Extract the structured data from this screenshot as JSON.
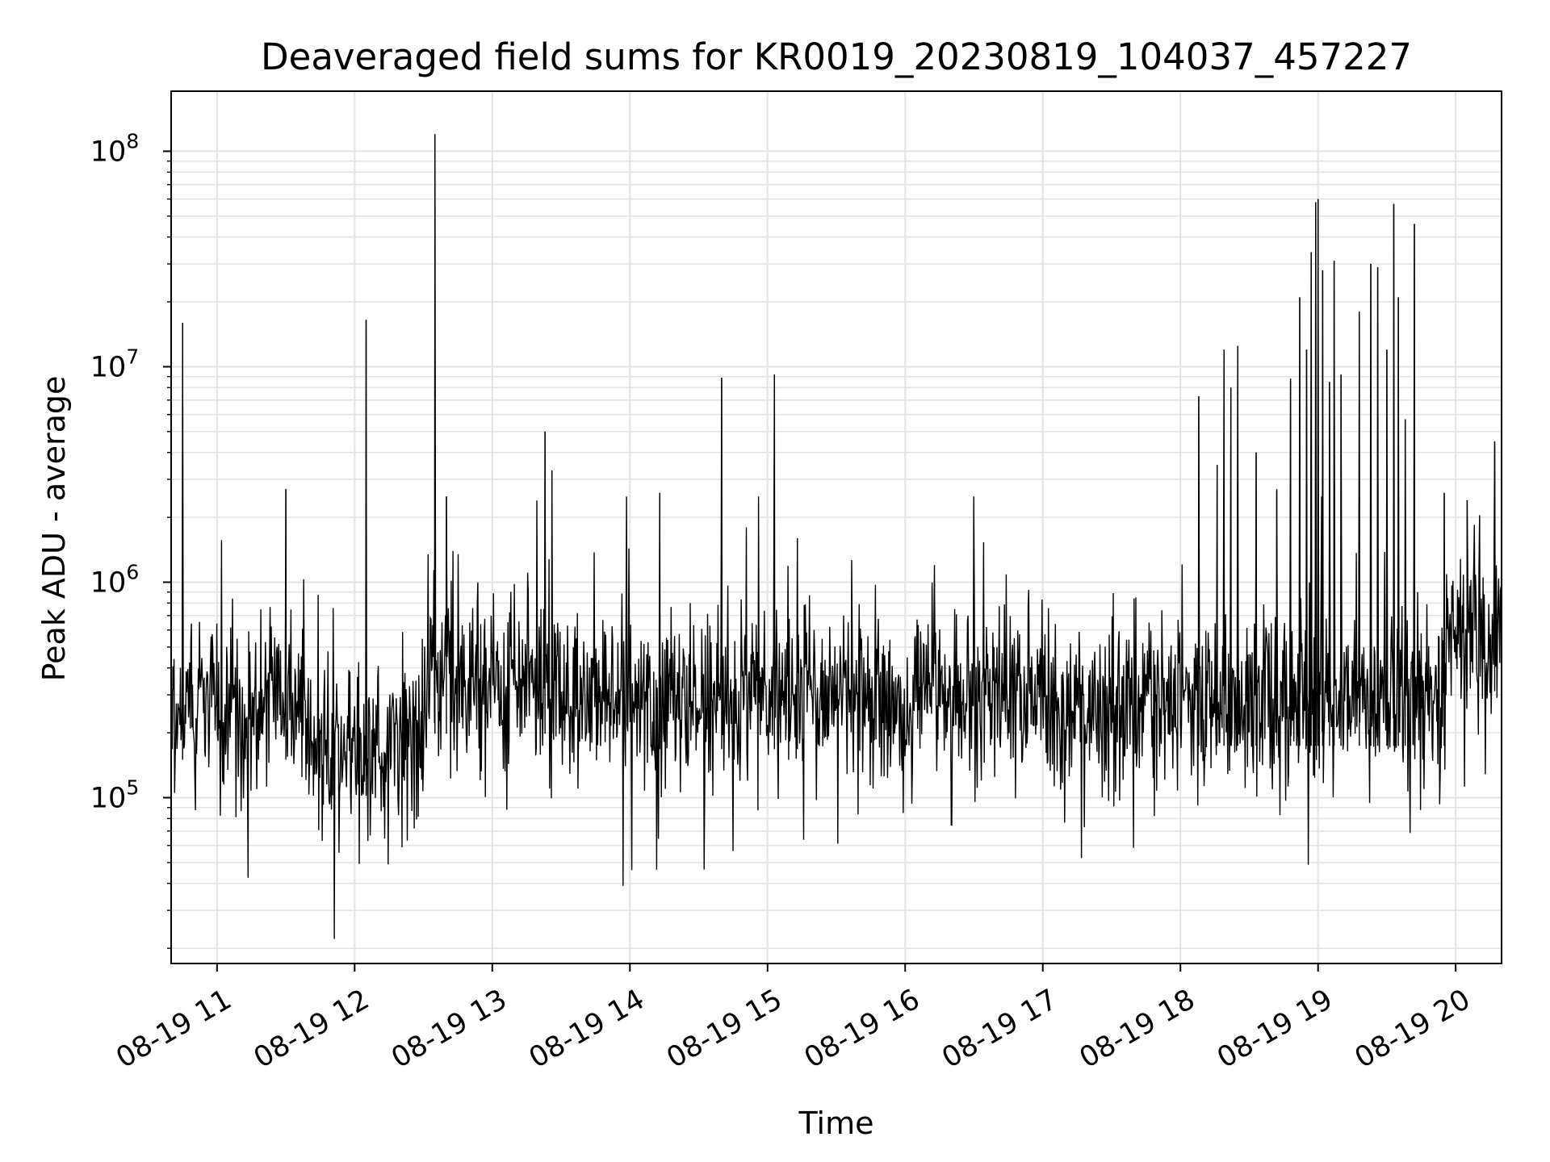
{
  "chart_data": {
    "type": "line",
    "title": "Deaveraged field sums for KR0019_20230819_104037_457227",
    "xlabel": "Time",
    "ylabel": "Peak ADU - average",
    "yscale": "log",
    "ylim": [
      17000,
      190000000
    ],
    "xlim": [
      "2023-08-19 10:40",
      "2023-08-19 20:20"
    ],
    "x_ticks": [
      "08-19 11",
      "08-19 12",
      "08-19 13",
      "08-19 14",
      "08-19 15",
      "08-19 16",
      "08-19 17",
      "08-19 18",
      "08-19 19",
      "08-19 20"
    ],
    "y_ticks": [
      {
        "base": "10",
        "exp": "5",
        "value": 100000
      },
      {
        "base": "10",
        "exp": "6",
        "value": 1000000
      },
      {
        "base": "10",
        "exp": "7",
        "value": 10000000
      },
      {
        "base": "10",
        "exp": "8",
        "value": 100000000
      }
    ],
    "grid": true,
    "line_color": "#000000",
    "baseline": {
      "note_segments": [
        {
          "x": [
            "2023-08-19 10:40",
            "2023-08-19 11:40"
          ],
          "median": 250000
        },
        {
          "x": [
            "2023-08-19 11:40",
            "2023-08-19 12:30"
          ],
          "median": 170000
        },
        {
          "x": [
            "2023-08-19 12:30",
            "2023-08-19 14:00"
          ],
          "median": 330000
        },
        {
          "x": [
            "2023-08-19 14:00",
            "2023-08-19 18:00"
          ],
          "median": 280000
        },
        {
          "x": [
            "2023-08-19 18:00",
            "2023-08-19 19:55"
          ],
          "median": 290000
        },
        {
          "x": [
            "2023-08-19 19:55",
            "2023-08-19 20:20"
          ],
          "median": 520000
        }
      ]
    },
    "spikes": [
      {
        "x": "2023-08-19 10:45",
        "y": 16000000
      },
      {
        "x": "2023-08-19 11:30",
        "y": 2700000
      },
      {
        "x": "2023-08-19 12:05",
        "y": 16500000
      },
      {
        "x": "2023-08-19 12:35",
        "y": 120000000
      },
      {
        "x": "2023-08-19 12:40",
        "y": 2500000
      },
      {
        "x": "2023-08-19 13:23",
        "y": 5000000
      },
      {
        "x": "2023-08-19 13:26",
        "y": 3300000
      },
      {
        "x": "2023-08-19 14:13",
        "y": 2600000
      },
      {
        "x": "2023-08-19 14:40",
        "y": 8900000
      },
      {
        "x": "2023-08-19 15:03",
        "y": 9200000
      },
      {
        "x": "2023-08-19 15:13",
        "y": 1600000
      },
      {
        "x": "2023-08-19 18:08",
        "y": 7300000
      },
      {
        "x": "2023-08-19 18:16",
        "y": 3500000
      },
      {
        "x": "2023-08-19 18:19",
        "y": 12000000
      },
      {
        "x": "2023-08-19 18:22",
        "y": 8000000
      },
      {
        "x": "2023-08-19 18:25",
        "y": 12500000
      },
      {
        "x": "2023-08-19 18:33",
        "y": 4000000
      },
      {
        "x": "2023-08-19 18:42",
        "y": 2700000
      },
      {
        "x": "2023-08-19 18:48",
        "y": 8800000
      },
      {
        "x": "2023-08-19 18:52",
        "y": 21000000
      },
      {
        "x": "2023-08-19 18:55",
        "y": 12000000
      },
      {
        "x": "2023-08-19 18:57",
        "y": 34000000
      },
      {
        "x": "2023-08-19 18:59",
        "y": 58000000
      },
      {
        "x": "2023-08-19 19:00",
        "y": 60000000
      },
      {
        "x": "2023-08-19 19:02",
        "y": 28000000
      },
      {
        "x": "2023-08-19 19:05",
        "y": 8500000
      },
      {
        "x": "2023-08-19 19:07",
        "y": 31000000
      },
      {
        "x": "2023-08-19 19:10",
        "y": 9200000
      },
      {
        "x": "2023-08-19 19:18",
        "y": 18000000
      },
      {
        "x": "2023-08-19 19:23",
        "y": 30000000
      },
      {
        "x": "2023-08-19 19:26",
        "y": 29000000
      },
      {
        "x": "2023-08-19 19:30",
        "y": 12000000
      },
      {
        "x": "2023-08-19 19:33",
        "y": 57000000
      },
      {
        "x": "2023-08-19 19:35",
        "y": 21000000
      },
      {
        "x": "2023-08-19 19:38",
        "y": 5700000
      },
      {
        "x": "2023-08-19 19:42",
        "y": 46000000
      },
      {
        "x": "2023-08-19 19:55",
        "y": 2600000
      },
      {
        "x": "2023-08-19 20:05",
        "y": 2400000
      },
      {
        "x": "2023-08-19 20:17",
        "y": 4500000
      }
    ]
  }
}
